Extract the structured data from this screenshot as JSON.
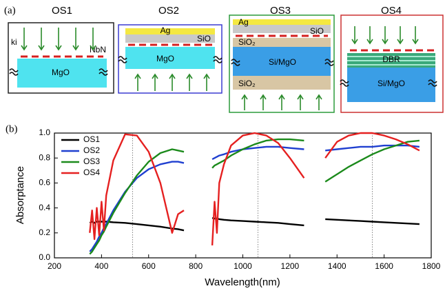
{
  "diagram": {
    "label": "(a)",
    "panels": [
      {
        "title": "OS1",
        "labels": [
          "ki",
          "NbN",
          "MgO"
        ]
      },
      {
        "title": "OS2",
        "labels": [
          "Ag",
          "SiO",
          "MgO"
        ]
      },
      {
        "title": "OS3",
        "labels": [
          "Ag",
          "SiO",
          "SiO₂",
          "Si/MgO",
          "SiO₂"
        ]
      },
      {
        "title": "OS4",
        "labels": [
          "DBR",
          "Si/MgO"
        ]
      }
    ]
  },
  "chart_label": "(b)",
  "chart_data": {
    "type": "line",
    "x_label": "Wavelength(nm)",
    "y_label": "Absorptance",
    "xlim": [
      200,
      1800
    ],
    "xticks": [
      200,
      400,
      600,
      800,
      1000,
      1200,
      1400,
      1600,
      1800
    ],
    "ylim": [
      0,
      1
    ],
    "yticks": [
      {
        "value": 0,
        "label": "0.0"
      },
      0.2,
      0.4,
      0.6,
      0.8,
      {
        "value": 1,
        "label": "1.0"
      }
    ],
    "grid": false,
    "legend": "upper left",
    "vlines": [
      532,
      1064,
      1550
    ],
    "x": [
      350,
      360,
      370,
      380,
      390,
      400,
      410,
      420,
      450,
      500,
      550,
      600,
      650,
      700,
      725,
      750,
      800,
      870,
      880,
      890,
      900,
      920,
      950,
      1000,
      1050,
      1100,
      1150,
      1200,
      1260,
      1300,
      1350,
      1400,
      1450,
      1500,
      1550,
      1600,
      1650,
      1700,
      1750
    ],
    "series": [
      {
        "name": "OS1",
        "color": "#000000",
        "values": [
          0.28,
          0.29,
          0.28,
          0.29,
          0.29,
          0.29,
          0.29,
          0.29,
          0.285,
          0.28,
          0.27,
          0.26,
          0.25,
          0.235,
          0.23,
          0.22,
          null,
          0.32,
          0.315,
          0.315,
          0.31,
          0.305,
          0.3,
          0.295,
          0.29,
          0.285,
          0.28,
          0.27,
          0.26,
          null,
          0.31,
          0.305,
          0.3,
          0.295,
          0.29,
          0.285,
          0.28,
          0.275,
          0.27
        ]
      },
      {
        "name": "OS2",
        "color": "#1f3fd0",
        "values": [
          0.05,
          0.07,
          0.1,
          0.13,
          0.17,
          0.2,
          0.24,
          0.27,
          0.38,
          0.53,
          0.64,
          0.71,
          0.75,
          0.77,
          0.77,
          0.76,
          null,
          0.79,
          0.8,
          0.81,
          0.82,
          0.83,
          0.85,
          0.87,
          0.88,
          0.89,
          0.89,
          0.88,
          0.87,
          null,
          0.86,
          0.87,
          0.88,
          0.89,
          0.89,
          0.9,
          0.9,
          0.9,
          0.89
        ]
      },
      {
        "name": "OS3",
        "color": "#1b8a1b",
        "values": [
          0.03,
          0.05,
          0.08,
          0.11,
          0.14,
          0.18,
          0.21,
          0.25,
          0.36,
          0.52,
          0.66,
          0.77,
          0.84,
          0.87,
          0.86,
          0.85,
          null,
          0.72,
          0.74,
          0.75,
          0.76,
          0.78,
          0.82,
          0.87,
          0.91,
          0.94,
          0.95,
          0.95,
          0.94,
          null,
          0.61,
          0.67,
          0.73,
          0.78,
          0.83,
          0.87,
          0.9,
          0.93,
          0.94
        ]
      },
      {
        "name": "OS4",
        "color": "#e52020",
        "values": [
          0.2,
          0.38,
          0.15,
          0.4,
          0.18,
          0.45,
          0.22,
          0.5,
          0.78,
          0.99,
          0.98,
          0.85,
          0.6,
          0.2,
          0.35,
          0.38,
          null,
          0.1,
          0.45,
          0.2,
          0.6,
          0.75,
          0.9,
          0.98,
          1,
          0.98,
          0.92,
          0.8,
          0.64,
          null,
          0.8,
          0.93,
          0.98,
          1,
          1,
          0.98,
          0.95,
          0.91,
          0.86
        ]
      }
    ]
  }
}
